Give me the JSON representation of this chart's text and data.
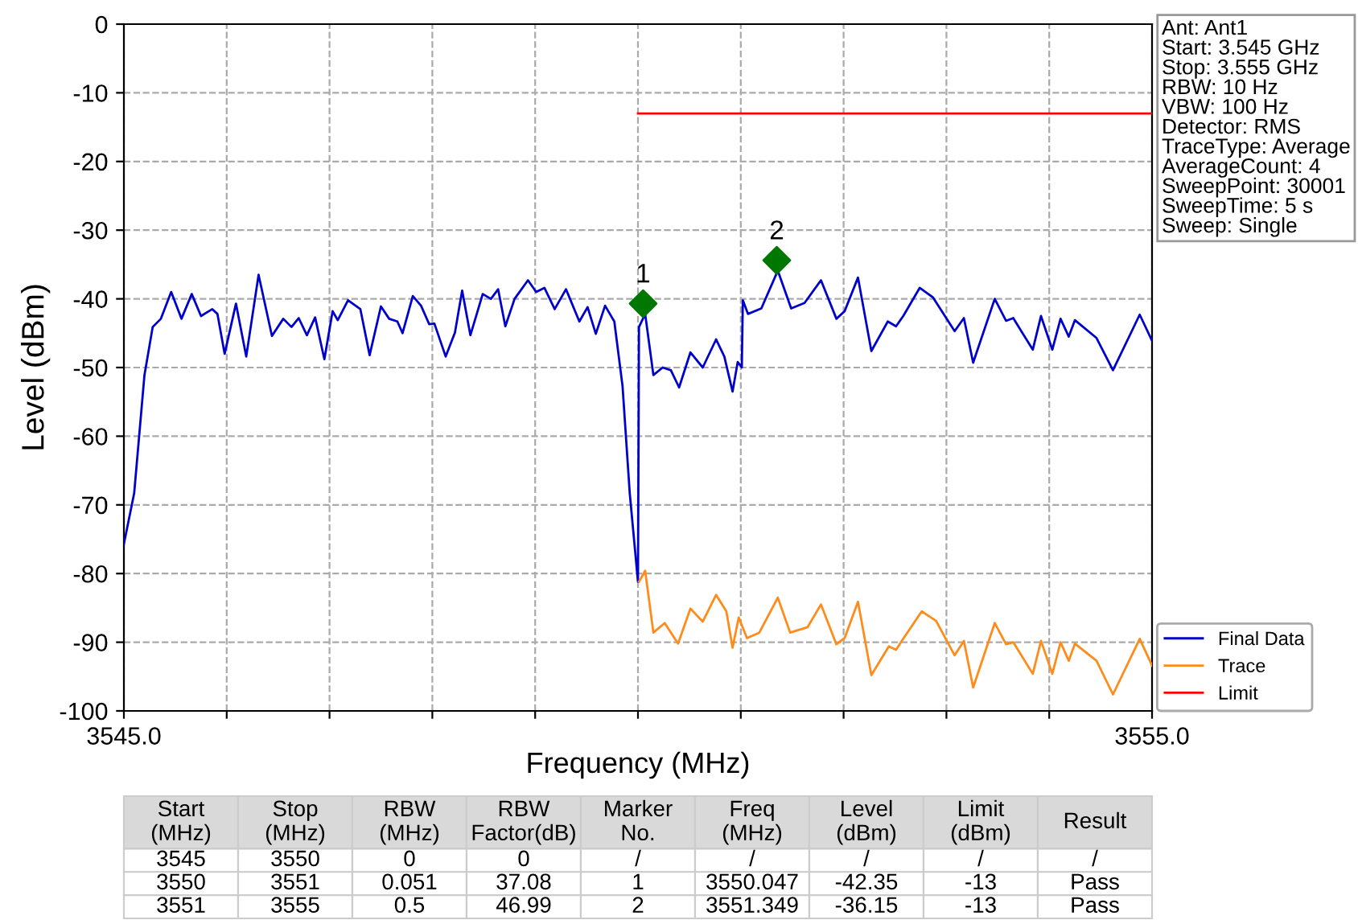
{
  "chart_data": {
    "type": "line",
    "xlabel": "Frequency (MHz)",
    "ylabel": "Level (dBm)",
    "xlim": [
      3545,
      3555
    ],
    "xticks": [
      {
        "value": 3545,
        "label": "3545.0"
      },
      {
        "value": 3546,
        "label": null
      },
      {
        "value": 3547,
        "label": null
      },
      {
        "value": 3548,
        "label": null
      },
      {
        "value": 3549,
        "label": null
      },
      {
        "value": 3550,
        "label": null
      },
      {
        "value": 3551,
        "label": null
      },
      {
        "value": 3552,
        "label": null
      },
      {
        "value": 3553,
        "label": null
      },
      {
        "value": 3554,
        "label": null
      },
      {
        "value": 3555,
        "label": "3555.0"
      }
    ],
    "ylim": [
      -100,
      0
    ],
    "yticks": [
      -100,
      -90,
      -80,
      -70,
      -60,
      -50,
      -40,
      -30,
      -20,
      -10,
      0
    ],
    "grid": true,
    "legend": "bottom right",
    "series": [
      {
        "name": "Final Data",
        "color": "#0000cc",
        "x": [
          3545.0,
          3545.1,
          3545.2,
          3545.28,
          3545.36,
          3545.46,
          3545.56,
          3545.66,
          3545.75,
          3545.86,
          3545.91,
          3545.98,
          3546.09,
          3546.19,
          3546.31,
          3546.44,
          3546.55,
          3546.63,
          3546.7,
          3546.78,
          3546.86,
          3546.95,
          3547.03,
          3547.08,
          3547.18,
          3547.3,
          3547.39,
          3547.5,
          3547.58,
          3547.66,
          3547.71,
          3547.81,
          3547.89,
          3547.97,
          3548.02,
          3548.13,
          3548.22,
          3548.29,
          3548.37,
          3548.49,
          3548.57,
          3548.64,
          3548.71,
          3548.8,
          3548.93,
          3549.01,
          3549.09,
          3549.19,
          3549.3,
          3549.43,
          3549.51,
          3549.59,
          3549.68,
          3549.77,
          3549.85,
          3549.92,
          3550.0,
          3550.01,
          3550.07,
          3550.15,
          3550.24,
          3550.32,
          3550.4,
          3550.51,
          3550.63,
          3550.76,
          3550.84,
          3550.92,
          3550.97,
          3551.01,
          3551.02,
          3551.07,
          3551.2,
          3551.36,
          3551.49,
          3551.62,
          3551.78,
          3551.93,
          3552.01,
          3552.14,
          3552.27,
          3552.43,
          3552.51,
          3552.58,
          3552.74,
          3552.87,
          3553.08,
          3553.17,
          3553.26,
          3553.47,
          3553.58,
          3553.65,
          3553.84,
          3553.92,
          3554.03,
          3554.11,
          3554.19,
          3554.25,
          3554.46,
          3554.62,
          3554.88,
          3555.0
        ],
        "values": [
          -75.7,
          -68.3,
          -51.1,
          -44.1,
          -42.9,
          -39.0,
          -42.9,
          -39.3,
          -42.5,
          -41.5,
          -42.2,
          -48.0,
          -40.7,
          -48.4,
          -36.5,
          -45.4,
          -42.9,
          -44.1,
          -42.8,
          -45.3,
          -42.7,
          -48.8,
          -41.8,
          -43.1,
          -40.2,
          -41.5,
          -48.2,
          -41.1,
          -42.9,
          -43.3,
          -45.0,
          -39.6,
          -41.0,
          -43.7,
          -43.6,
          -48.4,
          -44.9,
          -38.8,
          -45.3,
          -39.3,
          -40.0,
          -38.6,
          -44.0,
          -40.0,
          -37.3,
          -39.0,
          -38.4,
          -41.5,
          -38.6,
          -43.3,
          -41.2,
          -45.1,
          -41.0,
          -43.3,
          -52.7,
          -68.3,
          -81.2,
          -44.1,
          -42.2,
          -51.1,
          -50.0,
          -50.4,
          -52.9,
          -47.8,
          -50.0,
          -45.9,
          -48.4,
          -53.5,
          -49.2,
          -50.0,
          -40.2,
          -42.2,
          -41.4,
          -35.9,
          -41.4,
          -40.6,
          -37.3,
          -42.9,
          -41.8,
          -36.9,
          -47.6,
          -43.3,
          -44.0,
          -42.5,
          -38.4,
          -39.8,
          -44.7,
          -42.8,
          -49.3,
          -40.0,
          -43.2,
          -42.8,
          -47.4,
          -42.5,
          -47.4,
          -42.9,
          -45.5,
          -43.1,
          -45.7,
          -50.4,
          -42.3,
          -46.1
        ]
      },
      {
        "name": "Trace",
        "color": "#ff8c1a",
        "x": [
          3550.01,
          3550.07,
          3550.15,
          3550.26,
          3550.39,
          3550.51,
          3550.63,
          3550.76,
          3550.86,
          3550.92,
          3550.98,
          3551.06,
          3551.18,
          3551.36,
          3551.48,
          3551.65,
          3551.78,
          3551.93,
          3552.01,
          3552.14,
          3552.27,
          3552.44,
          3552.51,
          3552.58,
          3552.76,
          3552.9,
          3553.08,
          3553.17,
          3553.26,
          3553.47,
          3553.58,
          3553.65,
          3553.84,
          3553.92,
          3554.03,
          3554.11,
          3554.19,
          3554.25,
          3554.46,
          3554.62,
          3554.88,
          3555.0
        ],
        "values": [
          -81.2,
          -79.6,
          -88.6,
          -87.2,
          -90.2,
          -85.1,
          -87.0,
          -83.1,
          -85.5,
          -90.8,
          -86.4,
          -89.4,
          -88.6,
          -83.5,
          -88.6,
          -87.8,
          -84.5,
          -90.3,
          -89.4,
          -84.1,
          -94.8,
          -90.6,
          -91.1,
          -89.5,
          -85.5,
          -86.9,
          -91.9,
          -89.8,
          -96.6,
          -87.2,
          -90.3,
          -90.0,
          -94.6,
          -89.8,
          -94.6,
          -90.0,
          -92.7,
          -90.2,
          -92.7,
          -97.6,
          -89.5,
          -93.4
        ]
      },
      {
        "name": "Limit",
        "color": "#ff0000",
        "x": [
          3550,
          3555
        ],
        "values": [
          -13,
          -13
        ]
      },
      {
        "type": "scatter",
        "color": "#007700",
        "marker": "diamond",
        "x": [
          3550.05,
          3551.35
        ],
        "values": [
          -40.7,
          -34.4
        ]
      }
    ],
    "annotations": [
      {
        "text": "1",
        "x": 3550.05,
        "y": -40.7
      },
      {
        "text": "2",
        "x": 3551.35,
        "y": -34.4
      },
      "Ant: Ant1\nStart: 3.545 GHz\nStop: 3.555 GHz\nRBW: 10 Hz\nVBW: 100 Hz\nDetector: RMS\nTraceType: Average\nAverageCount: 4\nSweepPoint: 30001\nSweepTime: 5 s\nSweep: Single",
      "Start\n(MHz)",
      "Stop\n(MHz)",
      "RBW\n(MHz)",
      "RBW\nFactor(dB)",
      "Marker\nNo.",
      "Freq\n(MHz)",
      "Level\n(dBm)",
      "Limit\n(dBm)",
      "Result",
      "3545",
      "3550",
      "0",
      "0",
      "/",
      "/",
      "/",
      "/",
      "/",
      "3550",
      "3551",
      "0.051",
      "37.08",
      "1",
      "3550.047",
      "-42.35",
      "-13",
      "Pass",
      "3551",
      "3555",
      "0.5",
      "46.99",
      "2",
      "3551.349",
      "-36.15",
      "-13",
      "Pass"
    ]
  }
}
